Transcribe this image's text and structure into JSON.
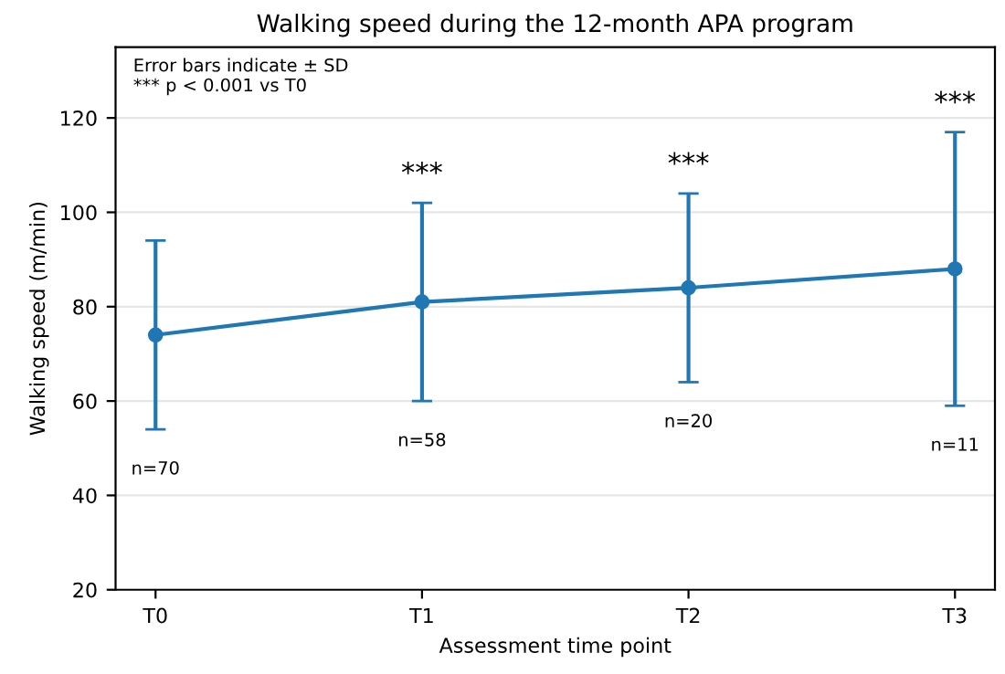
{
  "chart_data": {
    "type": "line",
    "title": "Walking speed during the 12-month APA program",
    "xlabel": "Assessment time point",
    "ylabel": "Walking speed (m/min)",
    "categories": [
      "T0",
      "T1",
      "T2",
      "T3"
    ],
    "series": [
      {
        "color": "#1f77b4",
        "values": [
          74,
          81,
          84,
          88
        ],
        "errors": [
          20,
          21,
          20,
          29
        ]
      }
    ],
    "ylim": [
      20,
      135
    ],
    "yticks": [
      20,
      40,
      60,
      80,
      100,
      120
    ],
    "grid": "y",
    "marker": "circle",
    "line_style": "solid",
    "annotations": [
      "Error bars indicate ± SD\n*** p < 0.001 vs T0",
      "***",
      "***",
      "***",
      "n=70",
      "n=58",
      "n=20",
      "n=11"
    ]
  }
}
